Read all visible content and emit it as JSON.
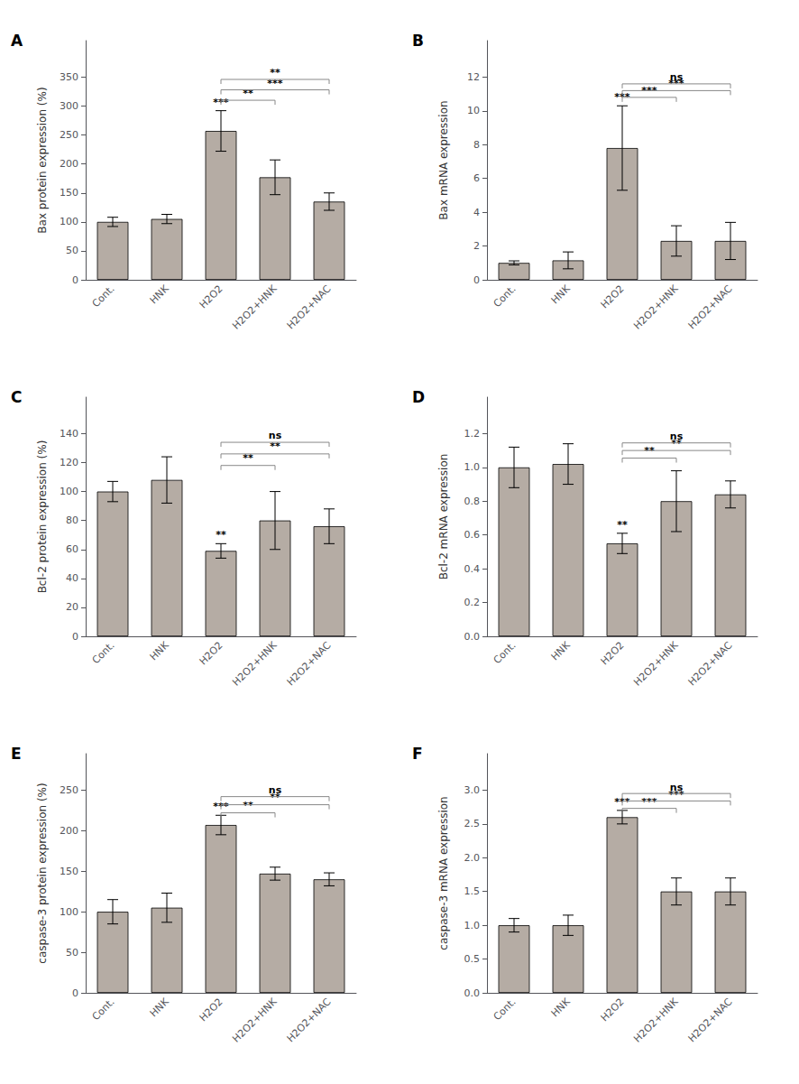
{
  "chart_data": [
    {
      "type": "bar",
      "title": "A",
      "ylabel": "Bax protein expression (%)",
      "categories": [
        "Cont.",
        "HNK",
        "H2O2",
        "H2O2+HNK",
        "H2O2+NAC"
      ],
      "values": [
        100,
        105,
        257,
        177,
        135
      ],
      "errors": [
        8,
        8,
        35,
        30,
        15
      ],
      "color": "#b5aca4",
      "significance": [
        null,
        null,
        "***",
        null,
        null
      ],
      "brackets": [
        {
          "from": "H2O2",
          "to": "H2O2+HNK",
          "label": "**",
          "y": 310,
          "label_y": 313
        },
        {
          "from": "H2O2",
          "to": "H2O2+NAC",
          "label": "***",
          "y": 328,
          "label_y": 331
        },
        {
          "from": "H2O2",
          "to": "H2O2+NAC",
          "label": "**",
          "y": 346,
          "label_y": 349
        }
      ],
      "ylim": [
        0,
        413
      ],
      "yticks": [
        0,
        50,
        100,
        150,
        200,
        250,
        300,
        350
      ]
    },
    {
      "type": "bar",
      "title": "B",
      "ylabel": "Bax mRNA expression",
      "categories": [
        "Cont.",
        "HNK",
        "H2O2",
        "H2O2+HNK",
        "H2O2+NAC"
      ],
      "values": [
        1.0,
        1.15,
        7.8,
        2.3,
        2.3
      ],
      "errors": [
        0.12,
        0.5,
        2.5,
        0.9,
        1.1
      ],
      "color": "#b5aca4",
      "significance": [
        null,
        null,
        "***",
        null,
        null
      ],
      "brackets": [
        {
          "from": "H2O2",
          "to": "H2O2+HNK",
          "label": "***",
          "y": 10.8,
          "label_y": 10.92
        },
        {
          "from": "H2O2",
          "to": "H2O2+NAC",
          "label": "***",
          "y": 11.2,
          "label_y": 11.32
        },
        {
          "from": "H2O2",
          "to": "H2O2+NAC",
          "label": "ns",
          "y": 11.6,
          "label_y": 11.68
        }
      ],
      "ylim": [
        0,
        14.16
      ],
      "yticks": [
        0,
        2,
        4,
        6,
        8,
        10,
        12
      ]
    },
    {
      "type": "bar",
      "title": "C",
      "ylabel": "Bcl-2 protein expression (%)",
      "categories": [
        "Cont.",
        "HNK",
        "H2O2",
        "H2O2+HNK",
        "H2O2+NAC"
      ],
      "values": [
        100,
        108,
        59,
        80,
        76
      ],
      "errors": [
        7,
        16,
        5,
        20,
        12
      ],
      "color": "#b5aca4",
      "significance": [
        null,
        null,
        "**",
        null,
        null
      ],
      "brackets": [
        {
          "from": "H2O2",
          "to": "H2O2+HNK",
          "label": "**",
          "y": 118,
          "label_y": 119.5
        },
        {
          "from": "H2O2",
          "to": "H2O2+NAC",
          "label": "**",
          "y": 126,
          "label_y": 127.5
        },
        {
          "from": "H2O2",
          "to": "H2O2+NAC",
          "label": "ns",
          "y": 134,
          "label_y": 135
        }
      ],
      "ylim": [
        0,
        165.2
      ],
      "yticks": [
        0,
        20,
        40,
        60,
        80,
        100,
        120,
        140
      ]
    },
    {
      "type": "bar",
      "title": "D",
      "ylabel": "Bcl-2 mRNA expression",
      "categories": [
        "Cont.",
        "HNK",
        "H2O2",
        "H2O2+HNK",
        "H2O2+NAC"
      ],
      "values": [
        1.0,
        1.02,
        0.55,
        0.8,
        0.84
      ],
      "errors": [
        0.12,
        0.12,
        0.06,
        0.18,
        0.08
      ],
      "color": "#b5aca4",
      "significance": [
        null,
        null,
        "**",
        null,
        null
      ],
      "brackets": [
        {
          "from": "H2O2",
          "to": "H2O2+HNK",
          "label": "**",
          "y": 1.055,
          "label_y": 1.067
        },
        {
          "from": "H2O2",
          "to": "H2O2+NAC",
          "label": "**",
          "y": 1.1,
          "label_y": 1.112
        },
        {
          "from": "H2O2",
          "to": "H2O2+NAC",
          "label": "ns",
          "y": 1.145,
          "label_y": 1.153
        }
      ],
      "ylim": [
        0,
        1.416
      ],
      "yticks": [
        {
          "value": 0,
          "label": "0.0"
        },
        0.2,
        0.4,
        0.6,
        0.8,
        {
          "value": 1,
          "label": "1.0"
        },
        1.2
      ]
    },
    {
      "type": "bar",
      "title": "E",
      "ylabel": "caspase-3 protein expression (%)",
      "categories": [
        "Cont.",
        "HNK",
        "H2O2",
        "H2O2+HNK",
        "H2O2+NAC"
      ],
      "values": [
        100,
        105,
        207,
        147,
        140
      ],
      "errors": [
        15,
        18,
        12,
        8,
        8
      ],
      "color": "#b5aca4",
      "significance": [
        null,
        null,
        "***",
        null,
        null
      ],
      "brackets": [
        {
          "from": "H2O2",
          "to": "H2O2+HNK",
          "label": "**",
          "y": 222,
          "label_y": 224.5
        },
        {
          "from": "H2O2",
          "to": "H2O2+NAC",
          "label": "**",
          "y": 232,
          "label_y": 234.5
        },
        {
          "from": "H2O2",
          "to": "H2O2+NAC",
          "label": "ns",
          "y": 242,
          "label_y": 244
        }
      ],
      "ylim": [
        0,
        295
      ],
      "yticks": [
        0,
        50,
        100,
        150,
        200,
        250
      ]
    },
    {
      "type": "bar",
      "title": "F",
      "ylabel": "caspase-3 mRNA expression",
      "categories": [
        "Cont.",
        "HNK",
        "H2O2",
        "H2O2+HNK",
        "H2O2+NAC"
      ],
      "values": [
        1.0,
        1.0,
        2.6,
        1.5,
        1.5
      ],
      "errors": [
        0.1,
        0.15,
        0.1,
        0.2,
        0.2
      ],
      "color": "#b5aca4",
      "significance": [
        null,
        null,
        "***",
        null,
        null
      ],
      "brackets": [
        {
          "from": "H2O2",
          "to": "H2O2+HNK",
          "label": "***",
          "y": 2.73,
          "label_y": 2.755
        },
        {
          "from": "H2O2",
          "to": "H2O2+NAC",
          "label": "***",
          "y": 2.84,
          "label_y": 2.865
        },
        {
          "from": "H2O2",
          "to": "H2O2+NAC",
          "label": "ns",
          "y": 2.95,
          "label_y": 2.965
        }
      ],
      "ylim": [
        0,
        3.54
      ],
      "yticks": [
        {
          "value": 0,
          "label": "0.0"
        },
        0.5,
        {
          "value": 1,
          "label": "1.0"
        },
        1.5,
        {
          "value": 2,
          "label": "2.0"
        },
        2.5,
        {
          "value": 3,
          "label": "3.0"
        }
      ]
    }
  ]
}
